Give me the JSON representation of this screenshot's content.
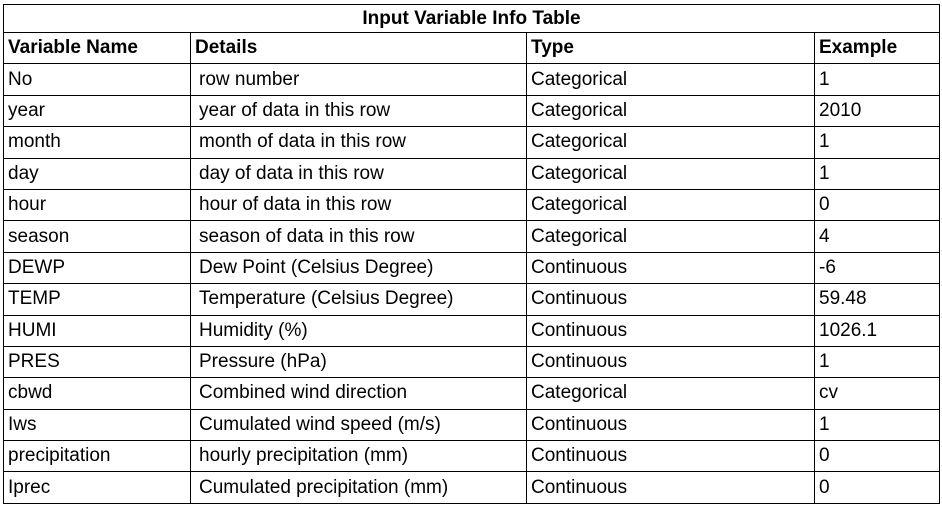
{
  "title": "Input Variable Info Table",
  "columns": [
    "Variable Name",
    "Details",
    "Type",
    "Example"
  ],
  "rows": [
    {
      "name": "No",
      "details": "row number",
      "type": "Categorical",
      "example": "1"
    },
    {
      "name": "year",
      "details": "year of data in this row",
      "type": "Categorical",
      "example": "2010"
    },
    {
      "name": "month",
      "details": "month of data in this row",
      "type": "Categorical",
      "example": "1"
    },
    {
      "name": "day",
      "details": "day of data in this row",
      "type": "Categorical",
      "example": "1"
    },
    {
      "name": "hour",
      "details": "hour of data in this row",
      "type": "Categorical",
      "example": "0"
    },
    {
      "name": "season",
      "details": "season of data in this row",
      "type": "Categorical",
      "example": "4"
    },
    {
      "name": "DEWP",
      "details": "Dew Point (Celsius Degree)",
      "type": "Continuous",
      "example": "-6"
    },
    {
      "name": "TEMP",
      "details": "Temperature (Celsius Degree)",
      "type": "Continuous",
      "example": "59.48"
    },
    {
      "name": "HUMI",
      "details": "Humidity (%)",
      "type": "Continuous",
      "example": "1026.1"
    },
    {
      "name": "PRES",
      "details": "Pressure (hPa)",
      "type": "Continuous",
      "example": "1"
    },
    {
      "name": "cbwd",
      "details": "Combined wind direction",
      "type": "Categorical",
      "example": "cv"
    },
    {
      "name": "Iws",
      "details": "Cumulated wind speed (m/s)",
      "type": "Continuous",
      "example": "1"
    },
    {
      "name": "precipitation",
      "details": "hourly precipitation (mm)",
      "type": "Continuous",
      "example": "0"
    },
    {
      "name": "Iprec",
      "details": "Cumulated precipitation (mm)",
      "type": "Continuous",
      "example": "0"
    }
  ]
}
